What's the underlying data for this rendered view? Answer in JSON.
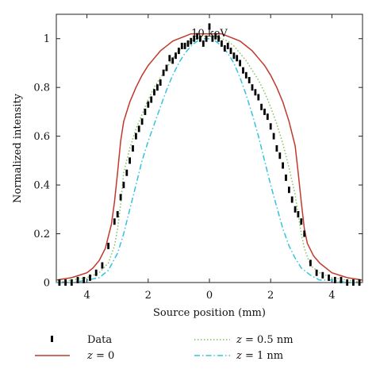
{
  "chart_data": {
    "type": "line",
    "title": "",
    "annotation": "10 keV",
    "xlabel": "Source position (mm)",
    "ylabel": "Normalized intensity",
    "xlim": [
      -5,
      5
    ],
    "ylim": [
      0,
      1.1
    ],
    "x_ticks": [
      -4,
      -2,
      0,
      2,
      4
    ],
    "x_tick_labels": [
      "4",
      "2",
      "0",
      "2",
      "4"
    ],
    "y_ticks": [
      0,
      0.2,
      0.4,
      0.6,
      0.8,
      1.0
    ],
    "y_tick_labels": [
      "0",
      "0.2",
      "0.4",
      "0.6",
      "0.8",
      "1"
    ],
    "legend_position": "bottom",
    "series": [
      {
        "name": "Data",
        "style": "markers",
        "color": "#000000",
        "x": [
          -4.9,
          -4.7,
          -4.5,
          -4.3,
          -4.1,
          -3.9,
          -3.7,
          -3.5,
          -3.3,
          -3.1,
          -3.0,
          -2.9,
          -2.8,
          -2.7,
          -2.6,
          -2.5,
          -2.4,
          -2.3,
          -2.2,
          -2.1,
          -2.0,
          -1.9,
          -1.8,
          -1.7,
          -1.6,
          -1.5,
          -1.4,
          -1.3,
          -1.2,
          -1.1,
          -1.0,
          -0.9,
          -0.8,
          -0.7,
          -0.6,
          -0.5,
          -0.4,
          -0.3,
          -0.2,
          -0.1,
          0.0,
          0.1,
          0.2,
          0.3,
          0.4,
          0.5,
          0.6,
          0.7,
          0.8,
          0.9,
          1.0,
          1.1,
          1.2,
          1.3,
          1.4,
          1.5,
          1.6,
          1.7,
          1.8,
          1.9,
          2.0,
          2.1,
          2.2,
          2.3,
          2.4,
          2.5,
          2.6,
          2.7,
          2.8,
          2.9,
          3.0,
          3.1,
          3.3,
          3.5,
          3.7,
          3.9,
          4.1,
          4.3,
          4.5,
          4.7,
          4.9
        ],
        "y": [
          0.0,
          0.0,
          0.0,
          0.01,
          0.01,
          0.02,
          0.04,
          0.07,
          0.15,
          0.25,
          0.28,
          0.35,
          0.4,
          0.45,
          0.5,
          0.55,
          0.6,
          0.63,
          0.66,
          0.7,
          0.73,
          0.75,
          0.78,
          0.8,
          0.82,
          0.86,
          0.88,
          0.92,
          0.91,
          0.93,
          0.95,
          0.97,
          0.97,
          0.98,
          0.99,
          1.0,
          1.01,
          1.0,
          0.98,
          1.0,
          1.05,
          1.0,
          1.01,
          1.0,
          0.98,
          0.96,
          0.97,
          0.95,
          0.93,
          0.92,
          0.9,
          0.87,
          0.85,
          0.83,
          0.8,
          0.78,
          0.76,
          0.72,
          0.7,
          0.68,
          0.64,
          0.6,
          0.55,
          0.52,
          0.48,
          0.43,
          0.38,
          0.34,
          0.3,
          0.28,
          0.25,
          0.2,
          0.08,
          0.04,
          0.03,
          0.02,
          0.01,
          0.01,
          0.0,
          0.0,
          0.0
        ]
      },
      {
        "name": "z = 0",
        "style": "solid",
        "color": "#c0392b",
        "x": [
          -5.0,
          -4.5,
          -4.0,
          -3.8,
          -3.6,
          -3.4,
          -3.2,
          -3.1,
          -3.0,
          -2.9,
          -2.8,
          -2.6,
          -2.4,
          -2.2,
          -2.0,
          -1.8,
          -1.6,
          -1.4,
          -1.2,
          -1.0,
          -0.8,
          -0.6,
          -0.4,
          -0.2,
          0.0,
          0.2,
          0.4,
          0.6,
          0.8,
          1.0,
          1.2,
          1.4,
          1.6,
          1.8,
          2.0,
          2.2,
          2.4,
          2.6,
          2.8,
          2.9,
          3.0,
          3.1,
          3.2,
          3.4,
          3.6,
          3.8,
          4.0,
          4.5,
          5.0
        ],
        "y": [
          0.01,
          0.02,
          0.04,
          0.06,
          0.09,
          0.14,
          0.24,
          0.33,
          0.45,
          0.58,
          0.66,
          0.74,
          0.8,
          0.85,
          0.89,
          0.92,
          0.95,
          0.97,
          0.99,
          1.0,
          1.01,
          1.02,
          1.02,
          1.02,
          1.02,
          1.02,
          1.02,
          1.01,
          1.0,
          0.99,
          0.97,
          0.95,
          0.92,
          0.89,
          0.85,
          0.8,
          0.74,
          0.66,
          0.56,
          0.45,
          0.33,
          0.22,
          0.16,
          0.11,
          0.08,
          0.06,
          0.04,
          0.02,
          0.01
        ]
      },
      {
        "name": "z = 0.5 nm",
        "style": "dotted",
        "color": "#7fc35a",
        "x": [
          -5.0,
          -4.5,
          -4.0,
          -3.6,
          -3.3,
          -3.1,
          -3.0,
          -2.9,
          -2.8,
          -2.6,
          -2.4,
          -2.2,
          -2.0,
          -1.8,
          -1.6,
          -1.4,
          -1.2,
          -1.0,
          -0.8,
          -0.6,
          -0.4,
          -0.2,
          0.0,
          0.2,
          0.4,
          0.6,
          0.8,
          1.0,
          1.2,
          1.4,
          1.6,
          1.8,
          2.0,
          2.2,
          2.4,
          2.6,
          2.8,
          2.9,
          3.0,
          3.1,
          3.3,
          3.6,
          4.0,
          4.5,
          5.0
        ],
        "y": [
          0.0,
          0.01,
          0.02,
          0.04,
          0.08,
          0.15,
          0.22,
          0.32,
          0.45,
          0.55,
          0.63,
          0.69,
          0.75,
          0.8,
          0.84,
          0.88,
          0.92,
          0.95,
          0.97,
          0.99,
          1.0,
          1.01,
          1.01,
          1.01,
          1.0,
          0.99,
          0.97,
          0.94,
          0.91,
          0.87,
          0.83,
          0.78,
          0.72,
          0.65,
          0.57,
          0.47,
          0.36,
          0.28,
          0.2,
          0.14,
          0.07,
          0.04,
          0.02,
          0.01,
          0.0
        ]
      },
      {
        "name": "z = 1 nm",
        "style": "dashdot",
        "color": "#33c3de",
        "x": [
          -5.0,
          -4.5,
          -4.0,
          -3.6,
          -3.3,
          -3.0,
          -2.8,
          -2.6,
          -2.4,
          -2.2,
          -2.0,
          -1.8,
          -1.6,
          -1.4,
          -1.2,
          -1.0,
          -0.8,
          -0.6,
          -0.4,
          -0.2,
          0.0,
          0.2,
          0.4,
          0.6,
          0.8,
          1.0,
          1.2,
          1.4,
          1.6,
          1.8,
          2.0,
          2.2,
          2.4,
          2.6,
          2.8,
          3.0,
          3.3,
          3.6,
          4.0,
          4.5,
          5.0
        ],
        "y": [
          0.0,
          0.0,
          0.01,
          0.02,
          0.05,
          0.12,
          0.2,
          0.3,
          0.4,
          0.5,
          0.58,
          0.65,
          0.72,
          0.79,
          0.85,
          0.9,
          0.94,
          0.97,
          0.99,
          1.0,
          1.0,
          0.99,
          0.97,
          0.94,
          0.9,
          0.84,
          0.77,
          0.69,
          0.6,
          0.5,
          0.4,
          0.31,
          0.22,
          0.15,
          0.1,
          0.06,
          0.03,
          0.01,
          0.01,
          0.0,
          0.0
        ]
      }
    ]
  },
  "legend": {
    "labels": [
      {
        "key": "data",
        "plain": "Data"
      },
      {
        "key": "z0",
        "ital": "z",
        "rest": " = 0"
      },
      {
        "key": "z05",
        "ital": "z",
        "rest": " = 0.5 nm"
      },
      {
        "key": "z1",
        "ital": "z",
        "rest": " = 1 nm"
      }
    ]
  }
}
